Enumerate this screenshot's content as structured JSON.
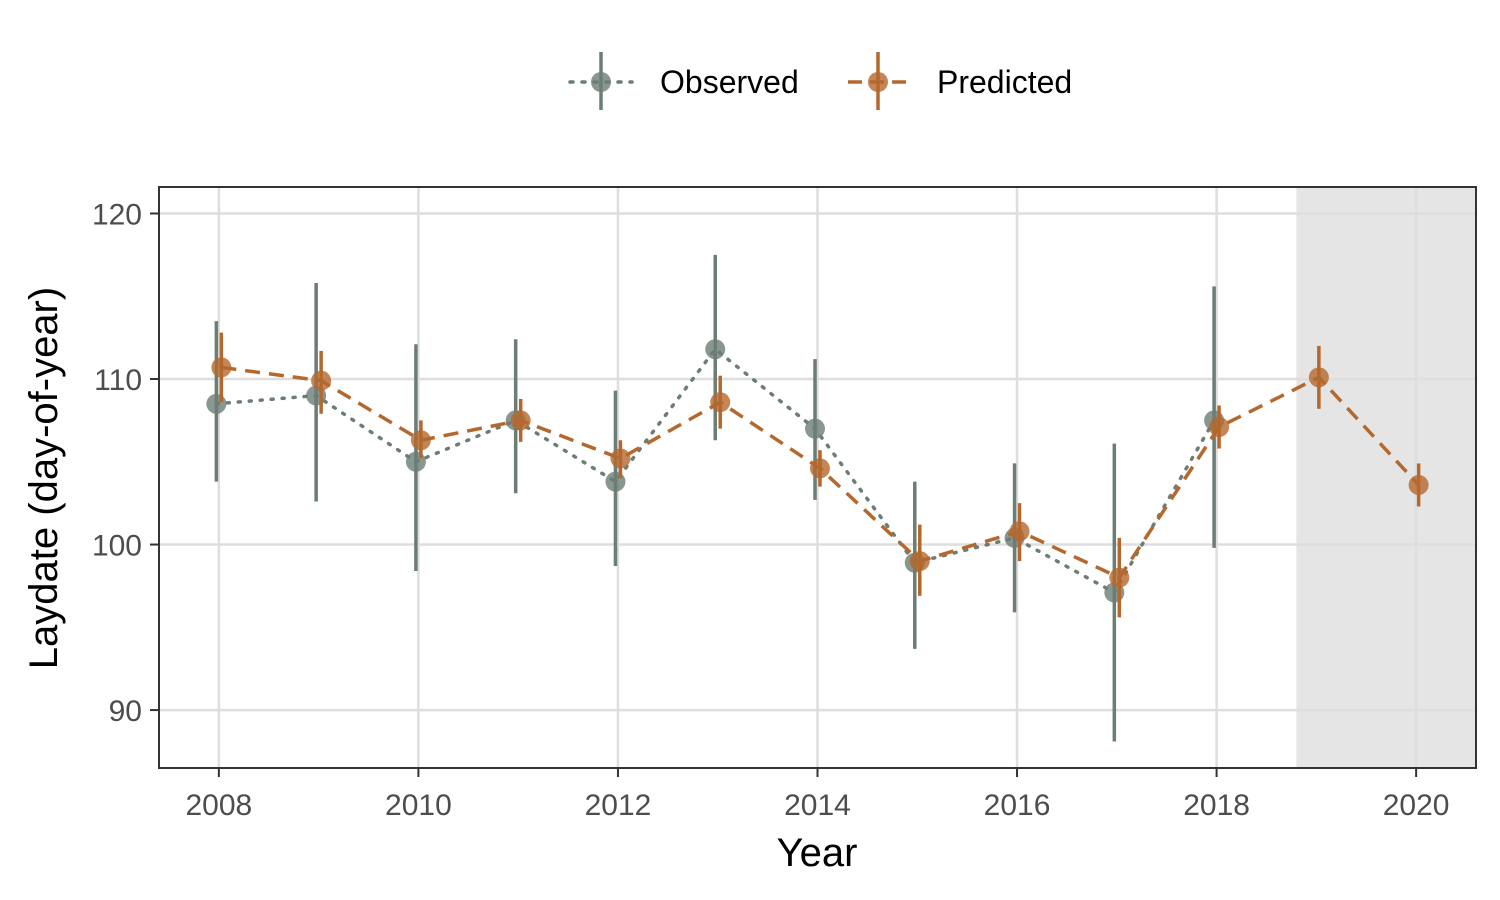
{
  "chart_data": {
    "type": "line",
    "xlabel": "Year",
    "ylabel": "Laydate (day-of-year)",
    "xlim": [
      2007.4,
      2020.6
    ],
    "ylim": [
      86.5,
      121.6
    ],
    "x_ticks": [
      2008,
      2010,
      2012,
      2014,
      2016,
      2018,
      2020
    ],
    "y_ticks": [
      90,
      100,
      110,
      120
    ],
    "grid": true,
    "legend_position": "top",
    "shaded_region": {
      "x_start": 2018.8,
      "x_end": 2020.6,
      "color": "#e5e5e5"
    },
    "series": [
      {
        "name": "Observed",
        "color": "#6b7d75",
        "line_style": "dotted",
        "x": [
          2008,
          2009,
          2010,
          2011,
          2012,
          2013,
          2014,
          2015,
          2016,
          2017,
          2018
        ],
        "y": [
          108.5,
          109.0,
          105.0,
          107.5,
          103.8,
          111.8,
          107.0,
          98.9,
          100.4,
          97.1,
          107.5
        ],
        "lower": [
          103.8,
          102.6,
          98.4,
          103.1,
          98.7,
          106.3,
          102.7,
          93.7,
          95.9,
          88.1,
          99.8
        ],
        "upper": [
          113.5,
          115.8,
          112.1,
          112.4,
          109.3,
          117.5,
          111.2,
          103.8,
          104.9,
          106.1,
          115.6
        ]
      },
      {
        "name": "Predicted",
        "color": "#b5682d",
        "line_style": "dashed",
        "x": [
          2008,
          2009,
          2010,
          2011,
          2012,
          2013,
          2014,
          2015,
          2016,
          2017,
          2018,
          2019,
          2020
        ],
        "y": [
          110.7,
          109.9,
          106.3,
          107.5,
          105.2,
          108.6,
          104.6,
          99.0,
          100.8,
          98.0,
          107.1,
          110.1,
          103.6
        ],
        "lower": [
          108.6,
          107.9,
          105.2,
          106.2,
          104.0,
          107.0,
          103.5,
          96.9,
          99.0,
          95.6,
          105.8,
          108.2,
          102.3
        ],
        "upper": [
          112.8,
          111.7,
          107.5,
          108.8,
          106.3,
          110.2,
          105.7,
          101.2,
          102.5,
          100.4,
          108.4,
          112.0,
          104.9
        ]
      }
    ]
  }
}
